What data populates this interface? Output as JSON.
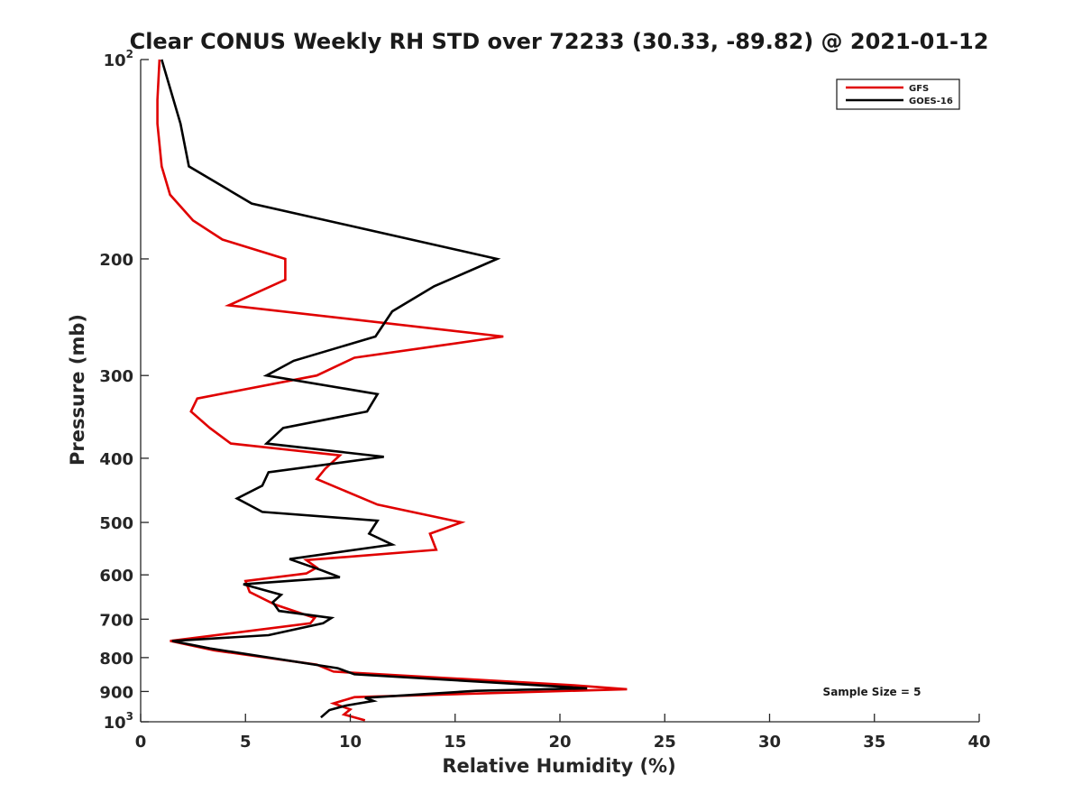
{
  "chart_data": {
    "type": "line",
    "title": "Clear CONUS Weekly RH STD over 72233 (30.33, -89.82) @ 2021-01-12",
    "xlabel": "Relative Humidity (%)",
    "ylabel": "Pressure (mb)",
    "xlim": [
      0,
      40
    ],
    "ylim": [
      100,
      1000
    ],
    "y_scale": "log",
    "y_reversed": true,
    "x_ticks": [
      0,
      5,
      10,
      15,
      20,
      25,
      30,
      35,
      40
    ],
    "x_tick_labels": [
      "0",
      "5",
      "10",
      "15",
      "20",
      "25",
      "30",
      "35",
      "40"
    ],
    "y_ticks": [
      100,
      200,
      300,
      400,
      500,
      600,
      700,
      800,
      900,
      1000
    ],
    "y_tick_labels": [
      {
        "base": "10",
        "exp": "2"
      },
      {
        "base": "200",
        "exp": ""
      },
      {
        "base": "300",
        "exp": ""
      },
      {
        "base": "400",
        "exp": ""
      },
      {
        "base": "500",
        "exp": ""
      },
      {
        "base": "600",
        "exp": ""
      },
      {
        "base": "700",
        "exp": ""
      },
      {
        "base": "800",
        "exp": ""
      },
      {
        "base": "900",
        "exp": ""
      },
      {
        "base": "10",
        "exp": "3"
      }
    ],
    "grid": false,
    "legend_position": "top-right",
    "annotation": "Sample Size = 5",
    "series": [
      {
        "name": "GFS",
        "color": "#e00000",
        "points": [
          [
            0.9,
            100
          ],
          [
            0.8,
            115
          ],
          [
            0.8,
            125
          ],
          [
            1.0,
            145
          ],
          [
            1.4,
            160
          ],
          [
            2.5,
            175
          ],
          [
            3.9,
            187
          ],
          [
            6.9,
            200
          ],
          [
            6.9,
            215
          ],
          [
            4.2,
            235
          ],
          [
            17.3,
            262
          ],
          [
            10.2,
            282
          ],
          [
            8.4,
            300
          ],
          [
            2.7,
            325
          ],
          [
            2.4,
            340
          ],
          [
            3.3,
            360
          ],
          [
            4.3,
            380
          ],
          [
            9.5,
            396
          ],
          [
            8.8,
            415
          ],
          [
            8.4,
            430
          ],
          [
            11.3,
            470
          ],
          [
            15.3,
            500
          ],
          [
            13.8,
            520
          ],
          [
            14.1,
            550
          ],
          [
            7.9,
            570
          ],
          [
            8.4,
            585
          ],
          [
            7.9,
            597
          ],
          [
            5.0,
            613
          ],
          [
            5.2,
            637
          ],
          [
            6.4,
            665
          ],
          [
            8.3,
            697
          ],
          [
            8.1,
            710
          ],
          [
            1.4,
            755
          ],
          [
            3.5,
            780
          ],
          [
            8.4,
            820
          ],
          [
            9.2,
            840
          ],
          [
            20.5,
            880
          ],
          [
            23.2,
            893
          ],
          [
            10.2,
            918
          ],
          [
            9.2,
            938
          ],
          [
            10.0,
            958
          ],
          [
            9.7,
            975
          ],
          [
            10.7,
            995
          ]
        ]
      },
      {
        "name": "GOES-16",
        "color": "#000000",
        "points": [
          [
            1.0,
            100
          ],
          [
            1.9,
            125
          ],
          [
            2.3,
            145
          ],
          [
            5.3,
            165
          ],
          [
            17.0,
            200
          ],
          [
            14.0,
            220
          ],
          [
            12.0,
            240
          ],
          [
            11.2,
            262
          ],
          [
            7.3,
            285
          ],
          [
            6.0,
            300
          ],
          [
            11.3,
            320
          ],
          [
            10.8,
            340
          ],
          [
            6.8,
            360
          ],
          [
            6.0,
            380
          ],
          [
            11.6,
            398
          ],
          [
            6.1,
            420
          ],
          [
            5.8,
            440
          ],
          [
            4.6,
            460
          ],
          [
            5.8,
            482
          ],
          [
            11.3,
            497
          ],
          [
            10.9,
            520
          ],
          [
            12.0,
            540
          ],
          [
            7.1,
            568
          ],
          [
            8.6,
            590
          ],
          [
            9.5,
            605
          ],
          [
            4.9,
            620
          ],
          [
            6.7,
            643
          ],
          [
            6.3,
            660
          ],
          [
            6.6,
            680
          ],
          [
            9.1,
            697
          ],
          [
            8.7,
            710
          ],
          [
            6.1,
            740
          ],
          [
            1.5,
            755
          ],
          [
            3.3,
            775
          ],
          [
            9.4,
            830
          ],
          [
            10.2,
            848
          ],
          [
            17.5,
            875
          ],
          [
            21.3,
            890
          ],
          [
            16.0,
            898
          ],
          [
            10.7,
            920
          ],
          [
            11.1,
            930
          ],
          [
            9.8,
            945
          ],
          [
            9.0,
            960
          ],
          [
            8.6,
            985
          ]
        ]
      }
    ]
  }
}
